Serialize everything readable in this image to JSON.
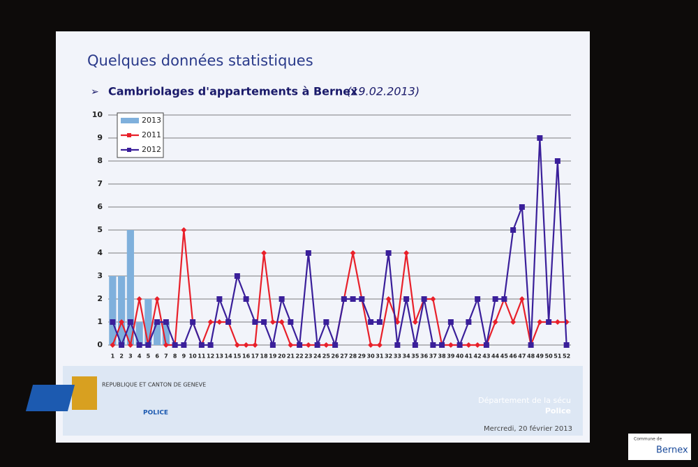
{
  "slide": {
    "heading": "Quelques données statistiques",
    "footer": {
      "canton": "REPUBLIQUE ET CANTON DE GENEVE",
      "police_logo": "POLICE",
      "department": "Département de la sécu",
      "service": "Police",
      "date": "Mercredi, 20 février 2013"
    },
    "commune": {
      "prefix": "Commune de",
      "name": "Bernex"
    }
  },
  "chart_data": {
    "type": "line",
    "title": "Cambriolages d'appartements à Bernex",
    "subtitle": "(19.02.2013)",
    "categories": [
      "1",
      "2",
      "3",
      "4",
      "5",
      "6",
      "7",
      "8",
      "9",
      "10",
      "11",
      "12",
      "13",
      "14",
      "15",
      "16",
      "17",
      "18",
      "19",
      "20",
      "21",
      "22",
      "23",
      "24",
      "25",
      "26",
      "27",
      "28",
      "29",
      "30",
      "31",
      "32",
      "33",
      "34",
      "35",
      "36",
      "37",
      "38",
      "39",
      "40",
      "41",
      "42",
      "43",
      "44",
      "45",
      "46",
      "47",
      "48",
      "49",
      "50",
      "51",
      "52"
    ],
    "series": [
      {
        "name": "2013",
        "kind": "bar",
        "color": "#7fb0dc",
        "values": [
          3,
          3,
          5,
          1,
          2,
          1,
          1,
          null,
          null,
          null,
          null,
          null,
          null,
          null,
          null,
          null,
          null,
          null,
          null,
          null,
          null,
          null,
          null,
          null,
          null,
          null,
          null,
          null,
          null,
          null,
          null,
          null,
          null,
          null,
          null,
          null,
          null,
          null,
          null,
          null,
          null,
          null,
          null,
          null,
          null,
          null,
          null,
          null,
          null,
          null,
          null,
          null
        ]
      },
      {
        "name": "2011",
        "kind": "line",
        "color": "#e8202a",
        "values": [
          0,
          1,
          0,
          2,
          0,
          2,
          0,
          0,
          5,
          1,
          0,
          1,
          1,
          1,
          0,
          0,
          0,
          4,
          1,
          1,
          0,
          0,
          0,
          0,
          0,
          0,
          2,
          4,
          2,
          0,
          0,
          2,
          1,
          4,
          1,
          2,
          2,
          0,
          0,
          0,
          0,
          0,
          0,
          1,
          2,
          1,
          2,
          0,
          1,
          1,
          1,
          1
        ]
      },
      {
        "name": "2012",
        "kind": "line",
        "color": "#3a1f9a",
        "values": [
          1,
          0,
          1,
          0,
          0,
          1,
          1,
          0,
          0,
          1,
          0,
          0,
          2,
          1,
          3,
          2,
          1,
          1,
          0,
          2,
          1,
          0,
          4,
          0,
          1,
          0,
          2,
          2,
          2,
          1,
          1,
          4,
          0,
          2,
          0,
          2,
          0,
          0,
          1,
          0,
          1,
          2,
          0,
          2,
          2,
          5,
          6,
          0,
          9,
          1,
          8,
          0
        ]
      }
    ],
    "ylim": [
      0,
      10
    ],
    "yticks": [
      0,
      1,
      2,
      3,
      4,
      5,
      6,
      7,
      8,
      9,
      10
    ],
    "grid": true,
    "legend": "top-left"
  }
}
